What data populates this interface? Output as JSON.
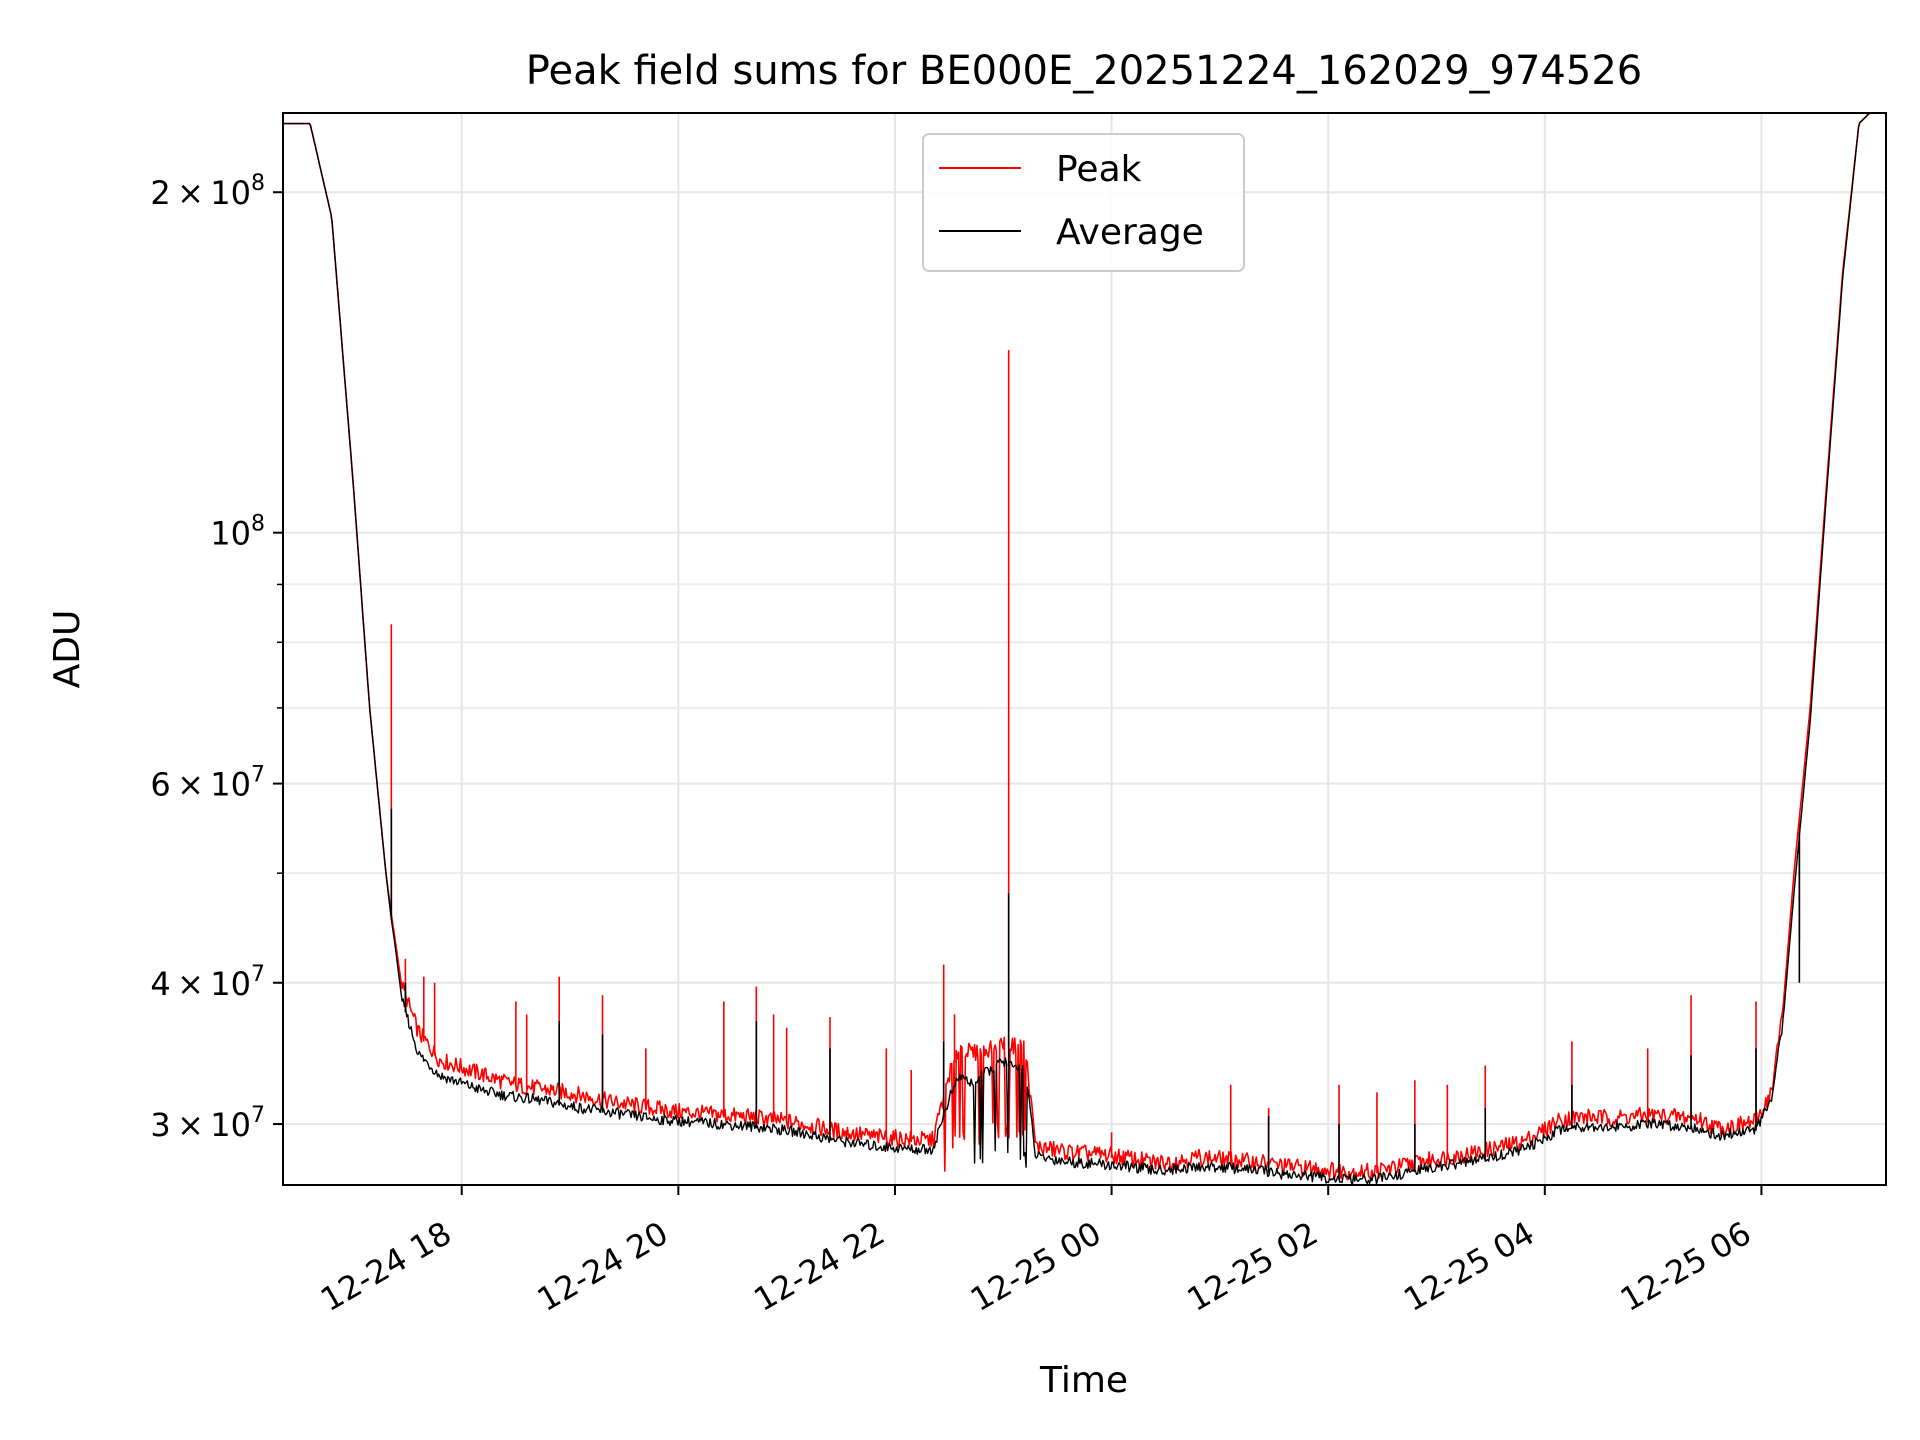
{
  "chart_data": {
    "type": "line",
    "title": "Peak field sums for BE000E_20251224_162029_974526",
    "xlabel": "Time",
    "ylabel": "ADU",
    "yscale": "log",
    "ylim": [
      26500000,
      235000000
    ],
    "xlim_hours": [
      16.35,
      31.15
    ],
    "grid": true,
    "legend_location": "upper center",
    "x_ticks": [
      {
        "value": 18,
        "label": "12-24 18"
      },
      {
        "value": 20,
        "label": "12-24 20"
      },
      {
        "value": 22,
        "label": "12-24 22"
      },
      {
        "value": 24,
        "label": "12-25 00"
      },
      {
        "value": 26,
        "label": "12-25 02"
      },
      {
        "value": 28,
        "label": "12-25 04"
      },
      {
        "value": 30,
        "label": "12-25 06"
      }
    ],
    "y_ticks": [
      {
        "value": 30000000,
        "mant": "3",
        "exp": "7"
      },
      {
        "value": 40000000,
        "mant": "4",
        "exp": "7"
      },
      {
        "value": 60000000,
        "mant": "6",
        "exp": "7"
      },
      {
        "value": 100000000,
        "mant": "",
        "exp": "8"
      },
      {
        "value": 200000000,
        "mant": "2",
        "exp": "8"
      }
    ],
    "y_minor_ticks": [
      50000000,
      70000000,
      80000000,
      90000000
    ],
    "series": [
      {
        "name": "Peak",
        "color": "#ff0000",
        "x": [
          16.35,
          16.6,
          16.8,
          17.0,
          17.15,
          17.3,
          17.35,
          17.38,
          17.45,
          17.6,
          17.8,
          18.0,
          18.2,
          18.4,
          18.6,
          18.8,
          19.0,
          19.2,
          19.4,
          19.6,
          19.8,
          20.0,
          20.2,
          20.4,
          20.6,
          20.8,
          21.0,
          21.2,
          21.4,
          21.6,
          21.8,
          22.0,
          22.2,
          22.35,
          22.5,
          22.6,
          22.7,
          22.8,
          22.9,
          23.0,
          23.1,
          23.2,
          23.3,
          23.4,
          23.5,
          23.6,
          23.8,
          24.0,
          24.2,
          24.4,
          24.6,
          24.8,
          25.0,
          25.2,
          25.4,
          25.6,
          25.8,
          26.0,
          26.2,
          26.4,
          26.6,
          26.8,
          27.0,
          27.2,
          27.4,
          27.6,
          27.8,
          28.0,
          28.1,
          28.2,
          28.4,
          28.6,
          28.8,
          29.0,
          29.2,
          29.4,
          29.6,
          29.8,
          29.95,
          30.1,
          30.2,
          30.3,
          30.45,
          30.6,
          30.75,
          30.9,
          31.0,
          31.15
        ],
        "y": [
          230000000,
          230000000,
          190000000,
          110000000,
          70000000,
          50000000,
          46000000,
          44000000,
          39500000,
          36000000,
          34000000,
          33500000,
          33000000,
          32500000,
          32200000,
          32000000,
          31800000,
          31500000,
          31200000,
          31000000,
          30800000,
          30600000,
          30500000,
          30400000,
          30300000,
          30200000,
          30000000,
          29800000,
          29500000,
          29300000,
          29100000,
          29000000,
          28900000,
          28900000,
          33000000,
          35000000,
          34500000,
          34500000,
          35000000,
          35200000,
          35000000,
          35000000,
          28500000,
          28400000,
          28300000,
          28200000,
          28100000,
          28000000,
          27800000,
          27600000,
          27700000,
          27900000,
          27800000,
          27700000,
          27600000,
          27400000,
          27300000,
          27200000,
          27100000,
          27100000,
          27300000,
          27600000,
          27800000,
          28000000,
          28200000,
          28500000,
          28800000,
          29500000,
          30000000,
          30200000,
          30300000,
          30200000,
          30300000,
          30400000,
          30300000,
          30200000,
          29600000,
          29800000,
          30000000,
          32000000,
          38000000,
          50000000,
          70000000,
          110000000,
          170000000,
          230000000,
          235000000,
          235000000
        ],
        "spikes": [
          {
            "x": 17.35,
            "y": 83000000
          },
          {
            "x": 17.48,
            "y": 42000000
          },
          {
            "x": 17.65,
            "y": 40500000
          },
          {
            "x": 17.75,
            "y": 40000000
          },
          {
            "x": 18.5,
            "y": 38500000
          },
          {
            "x": 18.6,
            "y": 37500000
          },
          {
            "x": 18.9,
            "y": 40500000
          },
          {
            "x": 19.3,
            "y": 39000000
          },
          {
            "x": 19.7,
            "y": 35000000
          },
          {
            "x": 20.42,
            "y": 38500000
          },
          {
            "x": 20.72,
            "y": 39700000
          },
          {
            "x": 20.88,
            "y": 37500000
          },
          {
            "x": 21.0,
            "y": 36500000
          },
          {
            "x": 21.4,
            "y": 37300000
          },
          {
            "x": 21.92,
            "y": 35000000
          },
          {
            "x": 22.15,
            "y": 33500000
          },
          {
            "x": 22.45,
            "y": 41500000
          },
          {
            "x": 22.55,
            "y": 37500000
          },
          {
            "x": 23.05,
            "y": 145000000
          },
          {
            "x": 24.0,
            "y": 29500000
          },
          {
            "x": 25.1,
            "y": 32500000
          },
          {
            "x": 25.45,
            "y": 31000000
          },
          {
            "x": 26.1,
            "y": 32500000
          },
          {
            "x": 26.45,
            "y": 32000000
          },
          {
            "x": 26.8,
            "y": 32800000
          },
          {
            "x": 27.1,
            "y": 32500000
          },
          {
            "x": 27.45,
            "y": 33800000
          },
          {
            "x": 28.25,
            "y": 35500000
          },
          {
            "x": 28.95,
            "y": 35000000
          },
          {
            "x": 29.35,
            "y": 39000000
          },
          {
            "x": 29.95,
            "y": 38500000
          },
          {
            "x": 30.35,
            "y": 43500000
          }
        ]
      },
      {
        "name": "Average",
        "color": "#000000",
        "x": [
          16.35,
          16.6,
          16.8,
          17.0,
          17.15,
          17.3,
          17.35,
          17.38,
          17.45,
          17.6,
          17.8,
          18.0,
          18.2,
          18.4,
          18.6,
          18.8,
          19.0,
          19.2,
          19.4,
          19.6,
          19.8,
          20.0,
          20.2,
          20.4,
          20.6,
          20.8,
          21.0,
          21.2,
          21.4,
          21.6,
          21.8,
          22.0,
          22.2,
          22.35,
          22.5,
          22.6,
          22.7,
          22.8,
          22.9,
          23.0,
          23.1,
          23.2,
          23.3,
          23.4,
          23.5,
          23.6,
          23.8,
          24.0,
          24.2,
          24.4,
          24.6,
          24.8,
          25.0,
          25.2,
          25.4,
          25.6,
          25.8,
          26.0,
          26.2,
          26.4,
          26.6,
          26.8,
          27.0,
          27.2,
          27.4,
          27.6,
          27.8,
          28.0,
          28.1,
          28.2,
          28.4,
          28.6,
          28.8,
          29.0,
          29.2,
          29.4,
          29.6,
          29.8,
          29.95,
          30.1,
          30.2,
          30.3,
          30.45,
          30.6,
          30.75,
          30.9,
          31.0,
          31.15
        ],
        "y": [
          230000000,
          230000000,
          190000000,
          110000000,
          70000000,
          50000000,
          45500000,
          43500000,
          38500000,
          34500000,
          33000000,
          32500000,
          32000000,
          31700000,
          31500000,
          31300000,
          31000000,
          30800000,
          30600000,
          30400000,
          30200000,
          30100000,
          30000000,
          29900000,
          29800000,
          29700000,
          29500000,
          29300000,
          29000000,
          28800000,
          28600000,
          28500000,
          28400000,
          28400000,
          31500000,
          33000000,
          32500000,
          33000000,
          33500000,
          34000000,
          33500000,
          33500000,
          28000000,
          27900000,
          27800000,
          27700000,
          27600000,
          27500000,
          27400000,
          27200000,
          27300000,
          27400000,
          27400000,
          27300000,
          27200000,
          27000000,
          26900000,
          26800000,
          26700000,
          26700000,
          26900000,
          27200000,
          27400000,
          27600000,
          27800000,
          28100000,
          28400000,
          29000000,
          29500000,
          29700000,
          29800000,
          29700000,
          29800000,
          29900000,
          29800000,
          29700000,
          29200000,
          29400000,
          29600000,
          31500000,
          37000000,
          48000000,
          68000000,
          108000000,
          168000000,
          230000000,
          235000000,
          235000000
        ],
        "spikes": [
          {
            "x": 17.35,
            "y": 57000000
          },
          {
            "x": 17.48,
            "y": 40000000
          },
          {
            "x": 18.9,
            "y": 37000000
          },
          {
            "x": 19.3,
            "y": 36000000
          },
          {
            "x": 20.72,
            "y": 37000000
          },
          {
            "x": 21.4,
            "y": 35000000
          },
          {
            "x": 22.45,
            "y": 35500000
          },
          {
            "x": 23.05,
            "y": 48000000
          },
          {
            "x": 25.45,
            "y": 30500000
          },
          {
            "x": 26.1,
            "y": 30000000
          },
          {
            "x": 26.8,
            "y": 30000000
          },
          {
            "x": 27.45,
            "y": 31000000
          },
          {
            "x": 28.25,
            "y": 32500000
          },
          {
            "x": 29.35,
            "y": 34500000
          },
          {
            "x": 29.95,
            "y": 35000000
          },
          {
            "x": 30.35,
            "y": 40000000
          }
        ]
      }
    ]
  }
}
